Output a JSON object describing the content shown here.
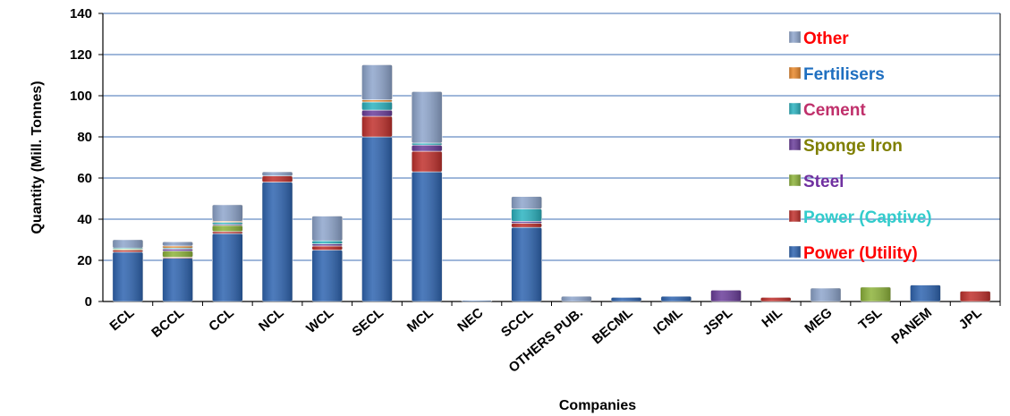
{
  "chart_data": {
    "type": "bar",
    "stacked": true,
    "xlabel": "Companies",
    "ylabel": "Quantity (Mill. Tonnes)",
    "ylim": [
      0,
      140
    ],
    "yticks": [
      0,
      20,
      40,
      60,
      80,
      100,
      120,
      140
    ],
    "grid": true,
    "legend_position": "right",
    "categories": [
      "ECL",
      "BCCL",
      "CCL",
      "NCL",
      "WCL",
      "SECL",
      "MCL",
      "NEC",
      "SCCL",
      "OTHERS PUB.",
      "BECML",
      "ICML",
      "JSPL",
      "HIL",
      "MEG",
      "TSL",
      "PANEM",
      "JPL"
    ],
    "series": [
      {
        "name": "Power (Utility)",
        "color": "#2e64b0",
        "label_color": "#ff0000",
        "values": [
          24,
          21,
          33,
          58,
          25,
          80,
          63,
          0.5,
          36,
          0,
          2,
          2.5,
          0,
          0,
          0,
          0,
          8,
          0
        ]
      },
      {
        "name": "Power (Captive)",
        "color": "#c0302c",
        "label_color": "#33cccc",
        "values": [
          1,
          0.5,
          1,
          3,
          2,
          10,
          10,
          0,
          2,
          0,
          0,
          0,
          0,
          2,
          0,
          0,
          0,
          5
        ]
      },
      {
        "name": "Steel",
        "color": "#8db33a",
        "label_color": "#7030a0",
        "values": [
          0.5,
          3,
          3,
          0,
          0,
          0,
          0,
          0,
          0,
          0,
          0,
          0,
          0,
          0,
          0,
          7,
          0,
          0
        ]
      },
      {
        "name": "Sponge Iron",
        "color": "#6a3d9a",
        "label_color": "#7f7f00",
        "values": [
          0,
          1,
          0.5,
          0,
          1,
          3,
          3,
          0,
          1,
          0,
          0,
          0,
          5.5,
          0,
          0,
          0,
          0,
          0
        ]
      },
      {
        "name": "Cement",
        "color": "#2bb3c0",
        "label_color": "#c0306b",
        "values": [
          0.5,
          0.5,
          1,
          0,
          1.5,
          4,
          1,
          0,
          6,
          0,
          0,
          0,
          0,
          0,
          0,
          0,
          0,
          0
        ]
      },
      {
        "name": "Fertilisers",
        "color": "#e8872a",
        "label_color": "#1f6fc0",
        "values": [
          0,
          1,
          0.5,
          0,
          0,
          1,
          0,
          0,
          0,
          0,
          0,
          0,
          0,
          0,
          0,
          0,
          0,
          0
        ]
      },
      {
        "name": "Other",
        "color": "#8ea5cc",
        "label_color": "#ff0000",
        "values": [
          4,
          2,
          8,
          2,
          12,
          17,
          25,
          0,
          6,
          2.5,
          0,
          0,
          0,
          0,
          6.5,
          0,
          0,
          0
        ]
      }
    ]
  }
}
